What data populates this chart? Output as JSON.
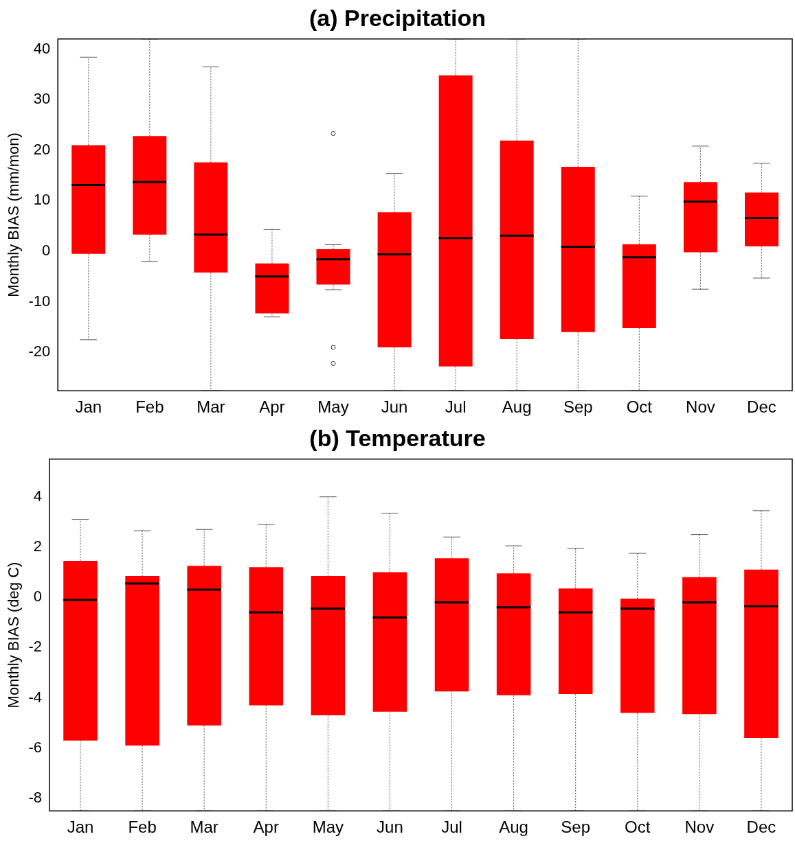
{
  "chart_data": [
    {
      "type": "box",
      "title": "(a) Precipitation",
      "ylabel": "Monthly BIAS (mm/mon)",
      "color": "#ff0000",
      "grid": false,
      "ylim": [
        -27.6,
        42
      ],
      "yticks": [
        -20,
        -10,
        0,
        10,
        20,
        30,
        40
      ],
      "categories": [
        "Jan",
        "Feb",
        "Mar",
        "Apr",
        "May",
        "Jun",
        "Jul",
        "Aug",
        "Sep",
        "Oct",
        "Nov",
        "Dec"
      ],
      "boxes": [
        {
          "low": -17.5,
          "q1": -0.5,
          "median": 13.1,
          "q3": 21.0,
          "high": 38.4
        },
        {
          "low": -2.0,
          "q1": 3.3,
          "median": 13.7,
          "q3": 22.8,
          "high": 42
        },
        {
          "low": -27.6,
          "q1": -4.2,
          "median": 3.3,
          "q3": 17.6,
          "high": 36.5
        },
        {
          "low": -13.0,
          "q1": -12.3,
          "median": -5.0,
          "q3": -2.4,
          "high": 4.3
        },
        {
          "low": -7.6,
          "q1": -6.6,
          "median": -1.6,
          "q3": 0.4,
          "high": 1.3,
          "outliers": [
            23.3,
            -19.0,
            -22.2
          ]
        },
        {
          "low": -27.6,
          "q1": -19.0,
          "median": -0.6,
          "q3": 7.7,
          "high": 15.4
        },
        {
          "low": -27.6,
          "q1": -22.8,
          "median": 2.6,
          "q3": 34.8,
          "high": 42
        },
        {
          "low": -27.6,
          "q1": -17.4,
          "median": 3.1,
          "q3": 21.9,
          "high": 42
        },
        {
          "low": -27.6,
          "q1": -16.0,
          "median": 0.9,
          "q3": 16.7,
          "high": 42
        },
        {
          "low": -27.6,
          "q1": -15.2,
          "median": -1.2,
          "q3": 1.4,
          "high": 10.9
        },
        {
          "low": -7.5,
          "q1": -0.2,
          "median": 9.8,
          "q3": 13.7,
          "high": 20.8
        },
        {
          "low": -5.3,
          "q1": 1.0,
          "median": 6.6,
          "q3": 11.6,
          "high": 17.4
        }
      ]
    },
    {
      "type": "box",
      "title": "(b) Temperature",
      "ylabel": "Monthly BIAS (deg C)",
      "color": "#ff0000",
      "grid": false,
      "ylim": [
        -8.5,
        5.5
      ],
      "yticks": [
        -8,
        -6,
        -4,
        -2,
        0,
        2,
        4
      ],
      "categories": [
        "Jan",
        "Feb",
        "Mar",
        "Apr",
        "May",
        "Jun",
        "Jul",
        "Aug",
        "Sep",
        "Oct",
        "Nov",
        "Dec"
      ],
      "boxes": [
        {
          "low": -8.5,
          "q1": -5.7,
          "median": -0.1,
          "q3": 1.45,
          "high": 3.1
        },
        {
          "low": -8.5,
          "q1": -5.9,
          "median": 0.55,
          "q3": 0.85,
          "high": 2.65
        },
        {
          "low": -8.5,
          "q1": -5.1,
          "median": 0.3,
          "q3": 1.25,
          "high": 2.7
        },
        {
          "low": -8.5,
          "q1": -4.3,
          "median": -0.6,
          "q3": 1.2,
          "high": 2.9
        },
        {
          "low": -8.5,
          "q1": -4.7,
          "median": -0.45,
          "q3": 0.85,
          "high": 4.0
        },
        {
          "low": -8.5,
          "q1": -4.55,
          "median": -0.8,
          "q3": 1.0,
          "high": 3.35
        },
        {
          "low": -8.5,
          "q1": -3.75,
          "median": -0.2,
          "q3": 1.55,
          "high": 2.4
        },
        {
          "low": -8.5,
          "q1": -3.9,
          "median": -0.4,
          "q3": 0.95,
          "high": 2.05
        },
        {
          "low": -8.5,
          "q1": -3.85,
          "median": -0.6,
          "q3": 0.35,
          "high": 1.95
        },
        {
          "low": -8.5,
          "q1": -4.6,
          "median": -0.45,
          "q3": -0.05,
          "high": 1.75
        },
        {
          "low": -8.5,
          "q1": -4.65,
          "median": -0.2,
          "q3": 0.8,
          "high": 2.5
        },
        {
          "low": -8.5,
          "q1": -5.6,
          "median": -0.35,
          "q3": 1.1,
          "high": 3.45
        }
      ]
    }
  ]
}
